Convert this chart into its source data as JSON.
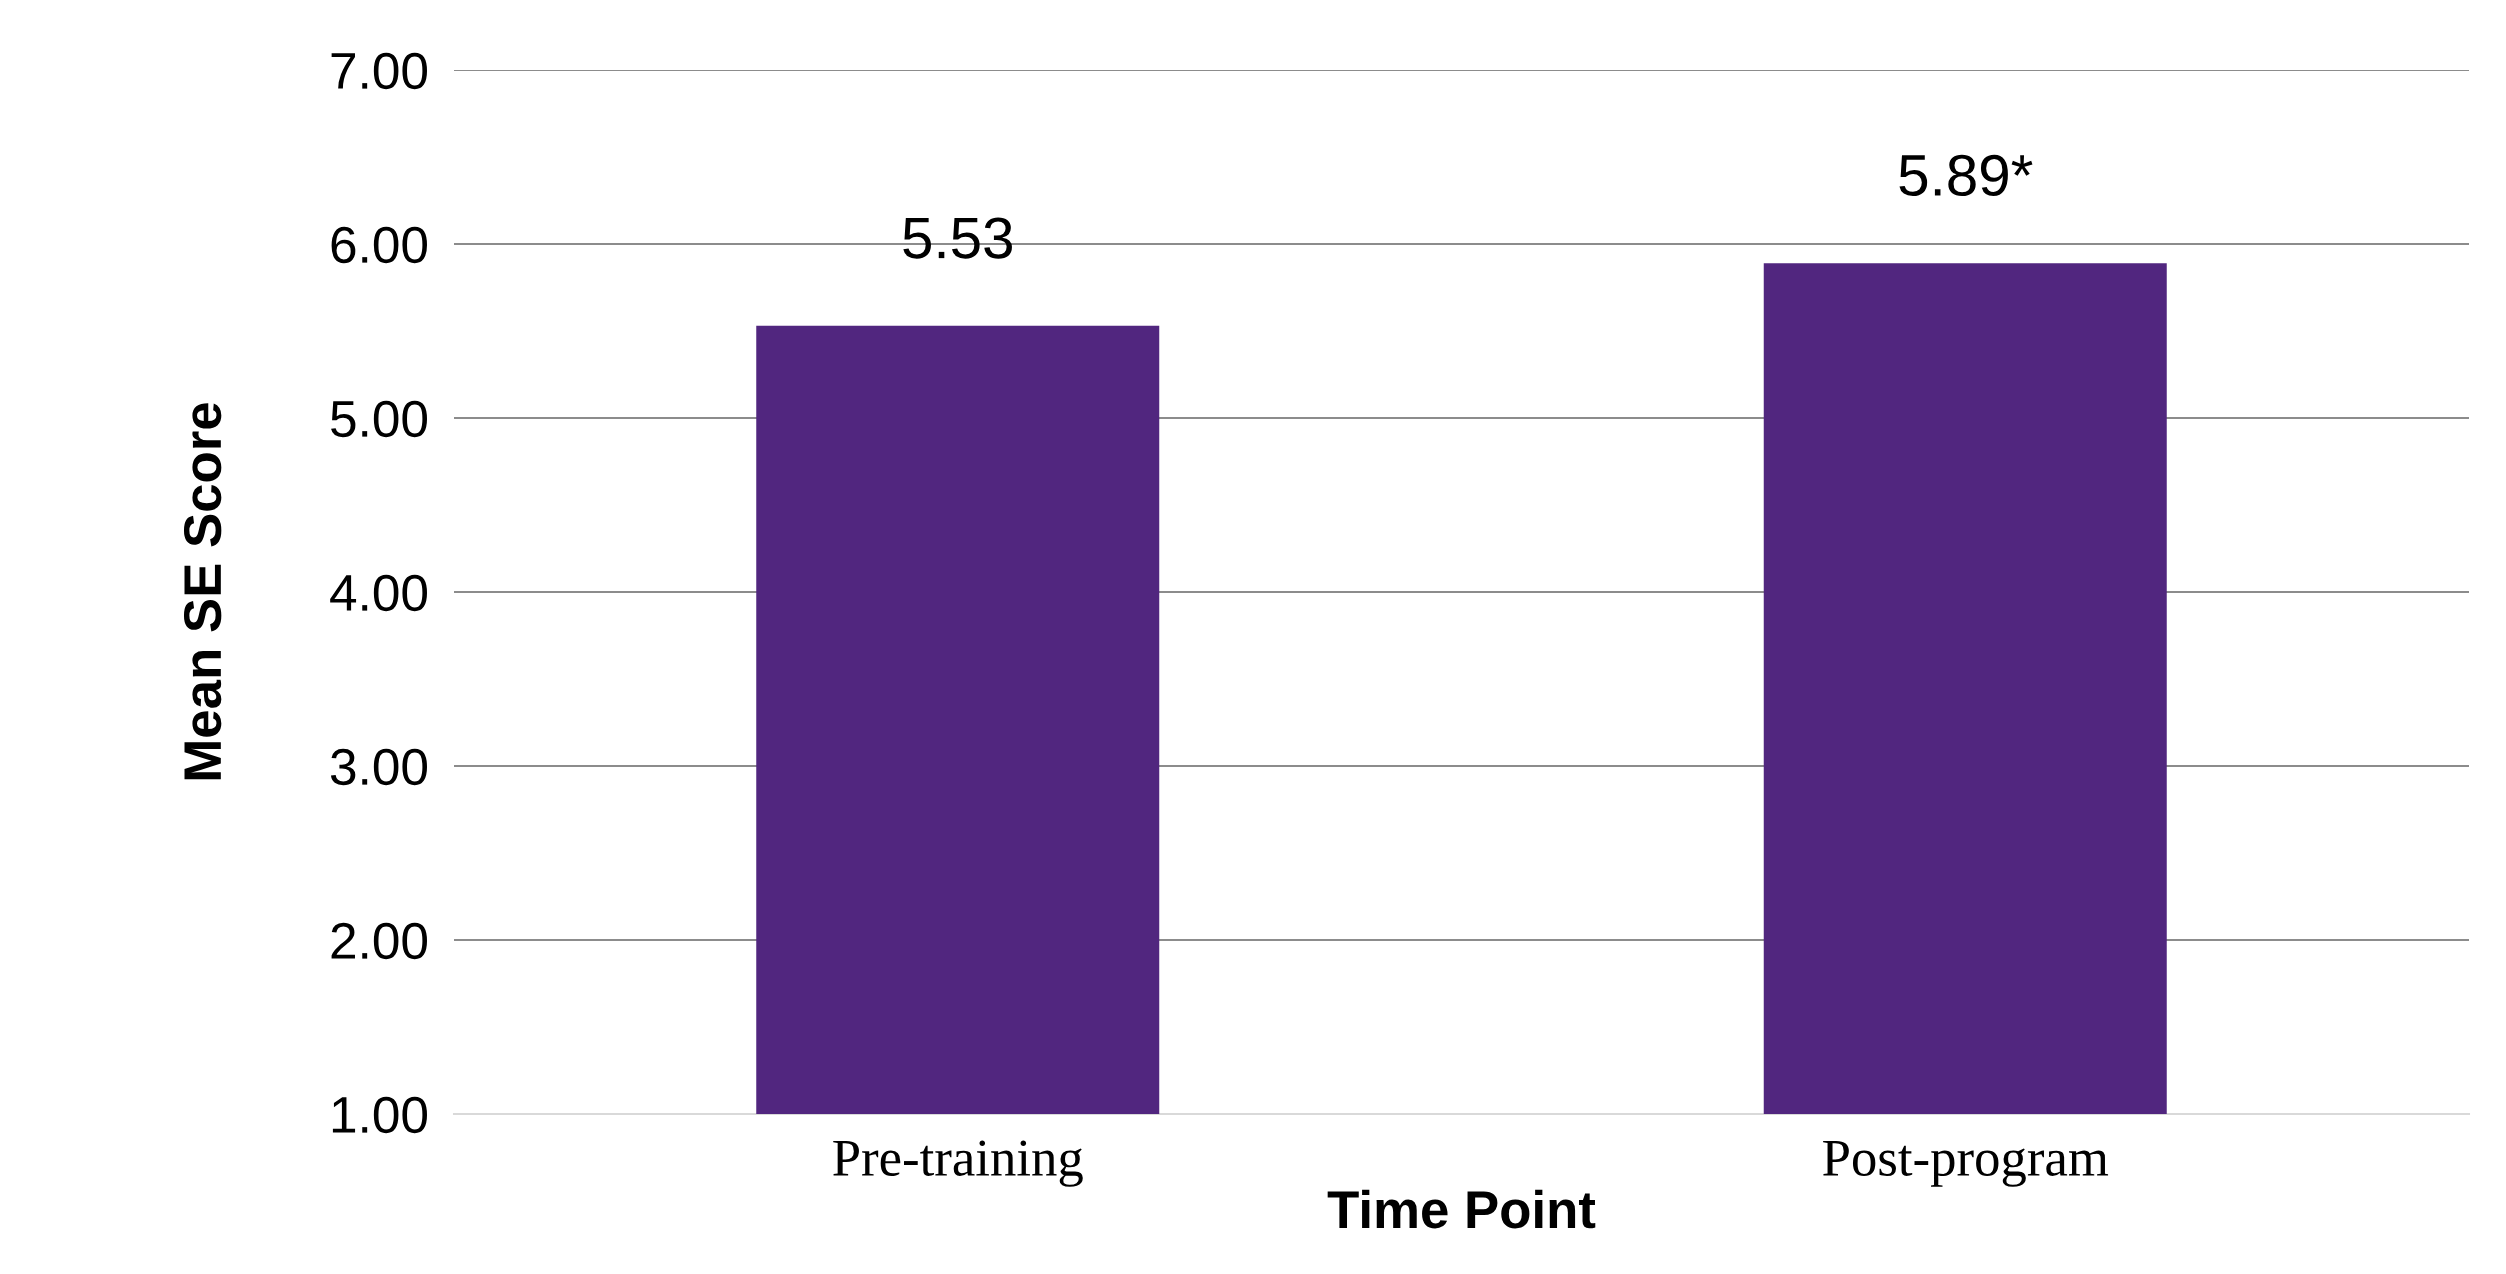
{
  "chart_data": {
    "type": "bar",
    "xlabel": "Time Point",
    "ylabel": "Mean SE Score",
    "categories": [
      "Pre-training",
      "Post-program"
    ],
    "values": [
      5.53,
      5.89
    ],
    "value_labels": [
      "5.53",
      "5.89*"
    ],
    "color": "#51267f",
    "ylim": [
      1,
      7
    ],
    "yticks": [
      {
        "value": 1,
        "label": "1.00"
      },
      {
        "value": 2,
        "label": "2.00"
      },
      {
        "value": 3,
        "label": "3.00"
      },
      {
        "value": 4,
        "label": "4.00"
      },
      {
        "value": 5,
        "label": "5.00"
      },
      {
        "value": 6,
        "label": "6.00"
      },
      {
        "value": 7,
        "label": "7.00"
      }
    ],
    "grid": "y",
    "legend": false
  }
}
